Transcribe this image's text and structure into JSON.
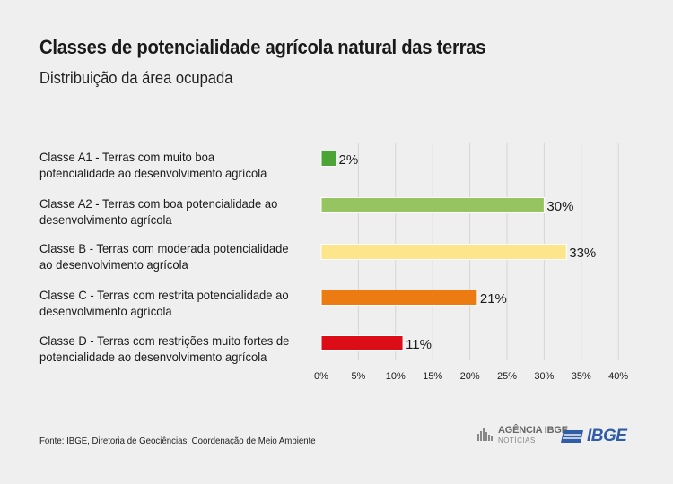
{
  "title": "Classes de potencialidade agrícola natural das terras",
  "subtitle": "Distribuição da área ocupada",
  "source": "Fonte: IBGE, Diretoria de Geociências, Coordenação de Meio Ambiente",
  "logos": {
    "agencia_main": "AGÊNCIA IBGE",
    "agencia_sub": "NOTÍCIAS",
    "ibge": "IBGE"
  },
  "chart_data": {
    "type": "bar",
    "orientation": "horizontal",
    "title": "Classes de potencialidade agrícola natural das terras",
    "subtitle": "Distribuição da área ocupada",
    "categories": [
      "Classe A1 - Terras com muito boa potencialidade ao desenvolvimento agrícola",
      "Classe A2 - Terras com boa potencialidade ao desenvolvimento agrícola",
      "Classe B - Terras com moderada potencialidade ao desenvolvimento agrícola",
      "Classe C - Terras com restrita potencialidade ao desenvolvimento agrícola",
      "Classe D - Terras com restrições muito fortes de potencialidade ao desenvolvimento agrícola"
    ],
    "values": [
      2,
      30,
      33,
      21,
      11
    ],
    "value_labels": [
      "2%",
      "30%",
      "33%",
      "21%",
      "11%"
    ],
    "colors": [
      "#4aa536",
      "#95c461",
      "#fde58c",
      "#ec7b12",
      "#dc0d16"
    ],
    "xlim": [
      0,
      40
    ],
    "xticks": [
      "0%",
      "5%",
      "10%",
      "15%",
      "20%",
      "25%",
      "30%",
      "35%",
      "40%"
    ],
    "grid": true,
    "legend": "none"
  }
}
